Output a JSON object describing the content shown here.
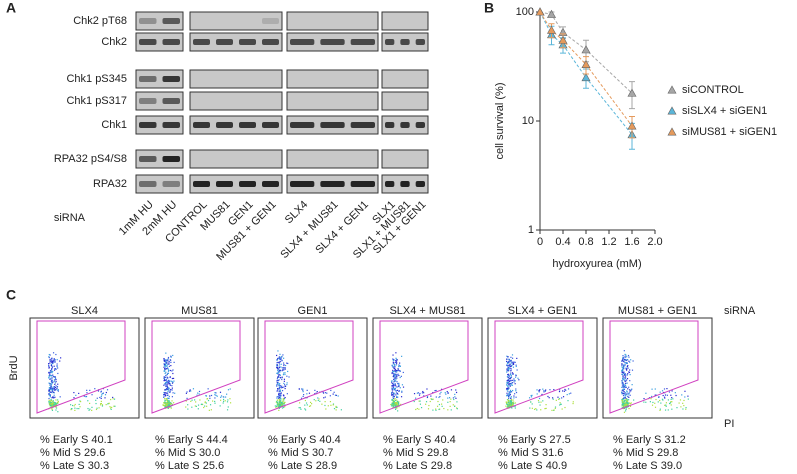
{
  "panel_labels": [
    "A",
    "B",
    "C"
  ],
  "blots": {
    "rows": [
      "Chk2 pT68",
      "Chk2",
      "Chk1 pS345",
      "Chk1 pS317",
      "Chk1",
      "RPA32 pS4/S8",
      "RPA32"
    ],
    "sirna_label": "siRNA",
    "lanes": [
      "1mM HU",
      "2mM HU",
      "CONTROL",
      "MUS81",
      "GEN1",
      "MUS81 + GEN1",
      "SLX4",
      "SLX4 + MUS81",
      "SLX4 + GEN1",
      "SLX1",
      "SLX1 + MUS81",
      "SLX1 + GEN1"
    ]
  },
  "chart_data": {
    "type": "line",
    "x": [
      0,
      0.2,
      0.4,
      0.8,
      1.6
    ],
    "x_label": "hydroxyurea (mM)",
    "y_label": "cell survival (%)",
    "log_y": true,
    "xlim": [
      0,
      2
    ],
    "xticks": [
      0,
      0.4,
      0.8,
      1.2,
      1.6,
      {
        "value": 2,
        "label": "2.0"
      }
    ],
    "ylim": [
      1,
      100
    ],
    "yticks": [
      1,
      10,
      100
    ],
    "series": [
      {
        "name": "siCONTROL",
        "color": "#a6a6a6",
        "values": [
          100,
          95,
          65,
          45,
          18
        ],
        "errors": [
          0,
          5,
          8,
          10,
          5
        ]
      },
      {
        "name": "siSLX4 + siGEN1",
        "color": "#5bb6d9",
        "values": [
          100,
          62,
          50,
          25,
          7.5
        ],
        "errors": [
          0,
          12,
          8,
          5,
          2
        ]
      },
      {
        "name": "siMUS81 + siGEN1",
        "color": "#e59a5c",
        "values": [
          100,
          68,
          55,
          33,
          9
        ],
        "errors": [
          0,
          10,
          8,
          6,
          2
        ]
      }
    ]
  },
  "flow": {
    "titles": [
      "SLX4",
      "MUS81",
      "GEN1",
      "SLX4 + MUS81",
      "SLX4 + GEN1",
      "MUS81 + GEN1"
    ],
    "sirna_label": "siRNA",
    "y_label": "BrdU",
    "x_label": "PI",
    "stats": [
      [
        "% Early S 40.1",
        "% Mid S 29.6",
        "% Late S 30.3"
      ],
      [
        "% Early S 44.4",
        "% Mid S 30.0",
        "% Late S 25.6"
      ],
      [
        "% Early S 40.4",
        "% Mid S 30.7",
        "% Late S 28.9"
      ],
      [
        "% Early S 40.4",
        "% Mid S 29.8",
        "% Late S 29.8"
      ],
      [
        "% Early S 27.5",
        "% Mid S 31.6",
        "% Late S 40.9"
      ],
      [
        "% Early S 31.2",
        "% Mid S 29.8",
        "% Late S 39.0"
      ]
    ]
  }
}
